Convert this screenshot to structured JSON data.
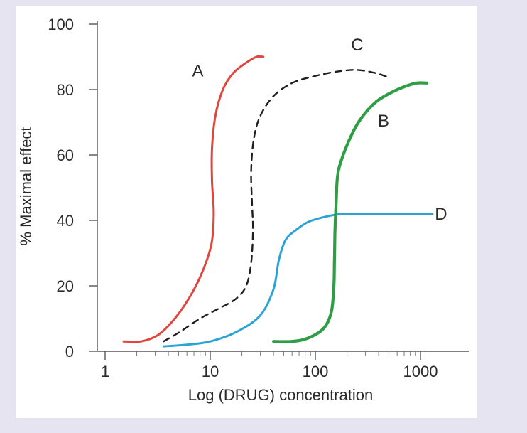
{
  "chart_data": {
    "type": "line",
    "title": "",
    "xlabel": "Log (DRUG) concentration",
    "ylabel": "% Maximal effect",
    "xscale": "log",
    "xlim": [
      1,
      1800
    ],
    "ylim": [
      0,
      100
    ],
    "xticks": [
      1,
      10,
      100,
      1000
    ],
    "xtick_labels": [
      "1",
      "10",
      "100",
      "1000"
    ],
    "yticks": [
      0,
      20,
      40,
      60,
      80,
      100
    ],
    "ytick_labels": [
      "0",
      "20",
      "40",
      "60",
      "80",
      "100"
    ],
    "grid": false,
    "series": [
      {
        "name": "A",
        "color": "#e0463c",
        "style": "solid",
        "points": [
          [
            1.5,
            3
          ],
          [
            2.2,
            3
          ],
          [
            3.2,
            5
          ],
          [
            4.6,
            10
          ],
          [
            6.5,
            17
          ],
          [
            8.6,
            25
          ],
          [
            10.3,
            33
          ],
          [
            10.8,
            42
          ],
          [
            10.4,
            52
          ],
          [
            10.4,
            62
          ],
          [
            11.2,
            72
          ],
          [
            13.2,
            80
          ],
          [
            16.5,
            85
          ],
          [
            21.5,
            88
          ],
          [
            27.5,
            90
          ],
          [
            32,
            90
          ]
        ]
      },
      {
        "name": "C",
        "color": "#1e1e1e",
        "style": "dashed",
        "points": [
          [
            3.6,
            3
          ],
          [
            5.2,
            6
          ],
          [
            8,
            10
          ],
          [
            12,
            13
          ],
          [
            17.5,
            16
          ],
          [
            22,
            20
          ],
          [
            24.5,
            27
          ],
          [
            25.5,
            37
          ],
          [
            25,
            45
          ],
          [
            24.5,
            55
          ],
          [
            26,
            65
          ],
          [
            30,
            72
          ],
          [
            40,
            78
          ],
          [
            60,
            82
          ],
          [
            95,
            84
          ],
          [
            160,
            85.5
          ],
          [
            250,
            86
          ],
          [
            380,
            85
          ],
          [
            470,
            84
          ]
        ]
      },
      {
        "name": "B",
        "color": "#2e9e44",
        "style": "solid",
        "points": [
          [
            40,
            3
          ],
          [
            60,
            3
          ],
          [
            85,
            4
          ],
          [
            120,
            7
          ],
          [
            142,
            12
          ],
          [
            150,
            20
          ],
          [
            152,
            28
          ],
          [
            154,
            38
          ],
          [
            158,
            46
          ],
          [
            162,
            53
          ],
          [
            175,
            58
          ],
          [
            220,
            66
          ],
          [
            270,
            71
          ],
          [
            370,
            76
          ],
          [
            520,
            79
          ],
          [
            720,
            81
          ],
          [
            920,
            82
          ],
          [
            1150,
            82
          ]
        ]
      },
      {
        "name": "D",
        "color": "#2aa4d4",
        "style": "solid",
        "points": [
          [
            3.6,
            1.5
          ],
          [
            6,
            2
          ],
          [
            10,
            3
          ],
          [
            18,
            6
          ],
          [
            30,
            11
          ],
          [
            40,
            19
          ],
          [
            45,
            28
          ],
          [
            52,
            34
          ],
          [
            65,
            37
          ],
          [
            85,
            39.5
          ],
          [
            120,
            41
          ],
          [
            180,
            42
          ],
          [
            300,
            42
          ],
          [
            600,
            42
          ],
          [
            1000,
            42
          ],
          [
            1300,
            42
          ]
        ]
      }
    ],
    "annotations": [
      {
        "text": "A",
        "series": "A"
      },
      {
        "text": "B",
        "series": "B"
      },
      {
        "text": "C",
        "series": "C"
      },
      {
        "text": "D",
        "series": "D"
      }
    ]
  }
}
